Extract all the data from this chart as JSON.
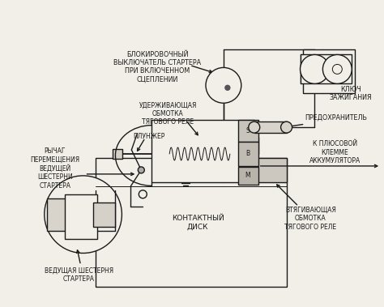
{
  "bg_color": "#f2efe9",
  "line_color": "#1a1a1a",
  "text_color": "#1a1a1a",
  "labels": {
    "blokirovochny": "БЛОКИРОВОЧНЫЙ\nВЫКЛЮЧАТЕЛЬ СТАРТЕРА\nПРИ ВКЛЮЧЕННОМ\nСЦЕПЛЕНИИ",
    "uderzhivayushchaya": "УДЕРЖИВАЮЩАЯ\nОБМОТКА\nТЯГОВОГО РЕЛЕ",
    "plunzher": "ПЛУНЖЕР",
    "rychag": "РЫЧАГ\nПЕРЕМЕЩЕНИЯ\nВЕДУЩЕЙ\nШЕСТЕРНИ\nСТАРТЕРА",
    "vedushchaya": "ВЕДУЩАЯ ШЕСТЕРНЯ\nСТАРТЕРА",
    "kontaktny": "КОНТАКТНЫЙ\nДИСК",
    "vtyagivayushchaya": "ВТЯГИВАЮЩАЯ\nОБМОТКА\nТЯГОВОГО РЕЛЕ",
    "klyuch": "КЛЮЧ\nЗАЖИГАНИЯ",
    "predokhranitel": "ПРЕДОХРАНИТЕЛЬ",
    "k_plyusovoy": "К ПЛЮСОВОЙ\nКЛЕММЕ\nАККУМУЛЯТОРА"
  },
  "figsize": [
    4.74,
    3.79
  ],
  "dpi": 100
}
